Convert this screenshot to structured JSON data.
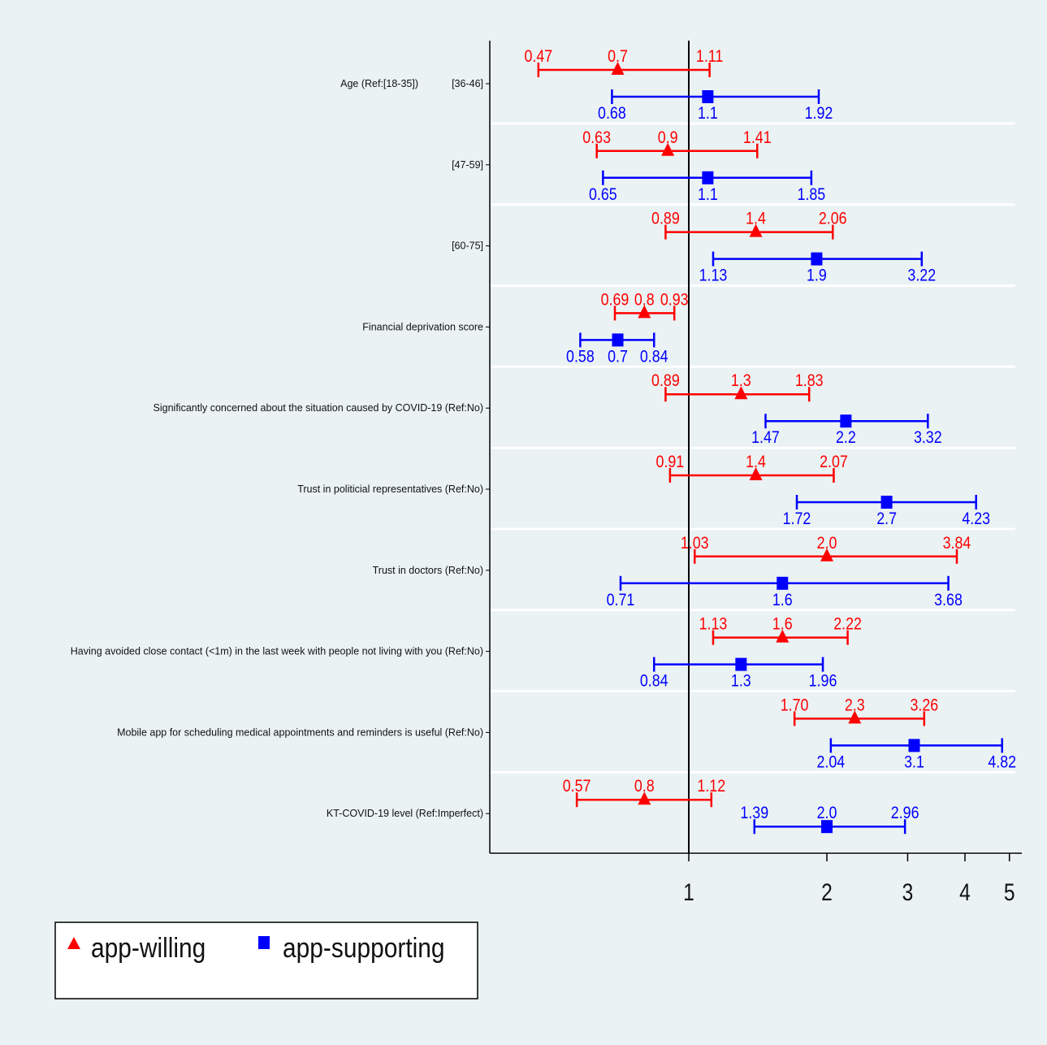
{
  "chart_data": {
    "type": "forest",
    "x_scale": "log",
    "x_ticks": [
      1,
      2,
      3,
      4,
      5
    ],
    "reference_line": 1,
    "colors": {
      "app-willing": "#ff0000",
      "app-supporting": "#0000ff",
      "axis": "#000000",
      "grid": "#ffffff",
      "background": "#eaf2f3"
    },
    "legend": {
      "position": "bottom-left",
      "items": [
        {
          "name": "app-willing",
          "marker": "triangle",
          "color": "#ff0000"
        },
        {
          "name": "app-supporting",
          "marker": "square",
          "color": "#0000ff"
        }
      ]
    },
    "rows": [
      {
        "group_label": "Age (Ref:[18-35])",
        "label": "[36-46]",
        "willing": {
          "or": "0.7",
          "low": "0.47",
          "high": "1.11"
        },
        "supporting": {
          "or": "1.1",
          "low": "0.68",
          "high": "1.92"
        }
      },
      {
        "group_label": "",
        "label": "[47-59]",
        "willing": {
          "or": "0.9",
          "low": "0.63",
          "high": "1.41"
        },
        "supporting": {
          "or": "1.1",
          "low": "0.65",
          "high": "1.85"
        }
      },
      {
        "group_label": "",
        "label": "[60-75]",
        "willing": {
          "or": "1.4",
          "low": "0.89",
          "high": "2.06"
        },
        "supporting": {
          "or": "1.9",
          "low": "1.13",
          "high": "3.22"
        }
      },
      {
        "group_label": "",
        "label": "Financial deprivation score",
        "willing": {
          "or": "0.8",
          "low": "0.69",
          "high": "0.93"
        },
        "supporting": {
          "or": "0.7",
          "low": "0.58",
          "high": "0.84"
        }
      },
      {
        "group_label": "",
        "label": "Significantly concerned about the situation caused by COVID-19 (Ref:No)",
        "willing": {
          "or": "1.3",
          "low": "0.89",
          "high": "1.83"
        },
        "supporting": {
          "or": "2.2",
          "low": "1.47",
          "high": "3.32"
        }
      },
      {
        "group_label": "",
        "label": "Trust in politicial representatives (Ref:No)",
        "willing": {
          "or": "1.4",
          "low": "0.91",
          "high": "2.07"
        },
        "supporting": {
          "or": "2.7",
          "low": "1.72",
          "high": "4.23"
        }
      },
      {
        "group_label": "",
        "label": "Trust in doctors (Ref:No)",
        "willing": {
          "or": "2.0",
          "low": "1.03",
          "high": "3.84"
        },
        "supporting": {
          "or": "1.6",
          "low": "0.71",
          "high": "3.68"
        }
      },
      {
        "group_label": "",
        "label": "Having avoided close contact (<1m) in the last week with people not living with you (Ref:No)",
        "willing": {
          "or": "1.6",
          "low": "1.13",
          "high": "2.22"
        },
        "supporting": {
          "or": "1.3",
          "low": "0.84",
          "high": "1.96"
        }
      },
      {
        "group_label": "",
        "label": "Mobile app for scheduling medical appointments and reminders is useful (Ref:No)",
        "willing": {
          "or": "2.3",
          "low": "1.70",
          "high": "3.26"
        },
        "supporting": {
          "or": "3.1",
          "low": "2.04",
          "high": "4.82"
        }
      },
      {
        "group_label": "",
        "label": "KT-COVID-19 level (Ref:Imperfect)",
        "willing": {
          "or": "0.8",
          "low": "0.57",
          "high": "1.12"
        },
        "supporting": {
          "or": "2.0",
          "low": "1.39",
          "high": "2.96"
        }
      }
    ]
  }
}
